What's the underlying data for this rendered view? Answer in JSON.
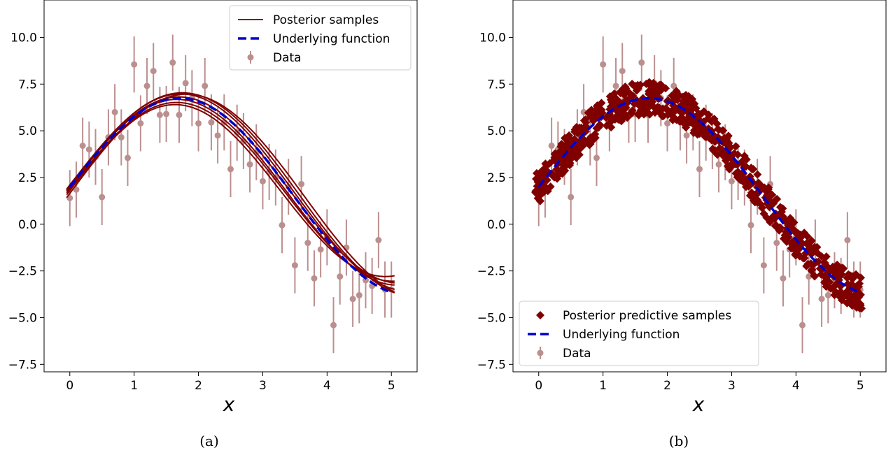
{
  "chart_data": [
    {
      "type": "line",
      "panel": "a",
      "caption": "(a)",
      "xlabel": "x",
      "ylabel": "",
      "xlim": [
        -0.4,
        5.4
      ],
      "ylim": [
        -7.9,
        12.0
      ],
      "xticks": [
        0,
        1,
        2,
        3,
        4,
        5
      ],
      "xtick_labels": [
        "0",
        "1",
        "2",
        "3",
        "4",
        "5"
      ],
      "yticks": [
        -7.5,
        -5.0,
        -2.5,
        0.0,
        2.5,
        5.0,
        7.5,
        10.0
      ],
      "ytick_labels": [
        "−7.5",
        "−5.0",
        "−2.5",
        "0.0",
        "2.5",
        "5.0",
        "7.5",
        "10.0"
      ],
      "legend": {
        "placement": "upper right",
        "entries": [
          {
            "label": "Posterior samples",
            "kind": "line",
            "color": "#800000"
          },
          {
            "label": "Underlying function",
            "kind": "dashed",
            "color": "#0000cc"
          },
          {
            "label": "Data",
            "kind": "errorbar",
            "color": "#bc8f8f"
          }
        ]
      },
      "posterior_samples": [
        {
          "amp": 5.1,
          "freq": 0.9,
          "offset": 2.05,
          "slope": -0.1
        },
        {
          "amp": 4.9,
          "freq": 0.92,
          "offset": 2.0,
          "slope": -0.05
        },
        {
          "amp": 4.7,
          "freq": 0.94,
          "offset": 1.9,
          "slope": -0.05
        },
        {
          "amp": 4.6,
          "freq": 0.96,
          "offset": 1.8,
          "slope": 0.0
        },
        {
          "amp": 5.4,
          "freq": 0.86,
          "offset": 1.65,
          "slope": -0.05
        },
        {
          "amp": 5.2,
          "freq": 0.88,
          "offset": 2.1,
          "slope": -0.15
        },
        {
          "amp": 4.8,
          "freq": 0.93,
          "offset": 2.05,
          "slope": -0.1
        }
      ],
      "series_colors": {
        "posterior": "#800000",
        "function": "#0000cc",
        "data": "#bc8f8f"
      }
    },
    {
      "type": "scatter",
      "panel": "b",
      "caption": "(b)",
      "xlabel": "x",
      "ylabel": "",
      "xlim": [
        -0.4,
        5.4
      ],
      "ylim": [
        -7.9,
        12.0
      ],
      "xticks": [
        0,
        1,
        2,
        3,
        4,
        5
      ],
      "xtick_labels": [
        "0",
        "1",
        "2",
        "3",
        "4",
        "5"
      ],
      "yticks": [
        -7.5,
        -5.0,
        -2.5,
        0.0,
        2.5,
        5.0,
        7.5,
        10.0
      ],
      "ytick_labels": [
        "−7.5",
        "−5.0",
        "−2.5",
        "0.0",
        "2.5",
        "5.0",
        "7.5",
        "10.0"
      ],
      "legend": {
        "placement": "lower left",
        "entries": [
          {
            "label": "Posterior predictive samples",
            "kind": "diamond",
            "color": "#800000"
          },
          {
            "label": "Underlying function",
            "kind": "dashed",
            "color": "#0000cc"
          },
          {
            "label": "Data",
            "kind": "errorbar",
            "color": "#bc8f8f"
          }
        ]
      },
      "predictive_band": {
        "half_width": 0.6
      },
      "series_colors": {
        "posterior": "#800000",
        "function": "#0000cc",
        "data": "#bc8f8f"
      }
    }
  ],
  "underlying_function": {
    "formula": "2 + 5*sin(0.9*x) - 0.15*x",
    "x_range": [
      0,
      5.0
    ]
  },
  "data_points": {
    "x": [
      0.0,
      0.1,
      0.2,
      0.3,
      0.4,
      0.5,
      0.6,
      0.7,
      0.8,
      0.9,
      1.0,
      1.1,
      1.2,
      1.3,
      1.4,
      1.5,
      1.6,
      1.7,
      1.8,
      1.9,
      2.0,
      2.1,
      2.2,
      2.3,
      2.4,
      2.5,
      2.6,
      2.7,
      2.8,
      2.9,
      3.0,
      3.1,
      3.2,
      3.3,
      3.4,
      3.5,
      3.6,
      3.7,
      3.8,
      3.9,
      4.0,
      4.1,
      4.2,
      4.3,
      4.4,
      4.5,
      4.6,
      4.7,
      4.8,
      4.9,
      5.0
    ],
    "y": [
      1.4,
      1.85,
      4.2,
      4.0,
      3.6,
      1.45,
      4.65,
      6.0,
      4.65,
      3.55,
      8.55,
      5.4,
      7.4,
      8.2,
      5.85,
      5.9,
      8.65,
      5.85,
      7.55,
      6.75,
      5.4,
      7.4,
      5.45,
      4.75,
      5.45,
      2.95,
      4.9,
      4.45,
      3.2,
      3.85,
      2.3,
      2.8,
      2.5,
      -0.05,
      2.0,
      -2.2,
      2.15,
      -1.0,
      -2.9,
      -1.35,
      -0.7,
      -5.4,
      -2.8,
      -1.25,
      -4.0,
      -3.8,
      -3.0,
      -3.3,
      -0.85,
      -3.5,
      -3.5
    ],
    "err": 1.5
  }
}
